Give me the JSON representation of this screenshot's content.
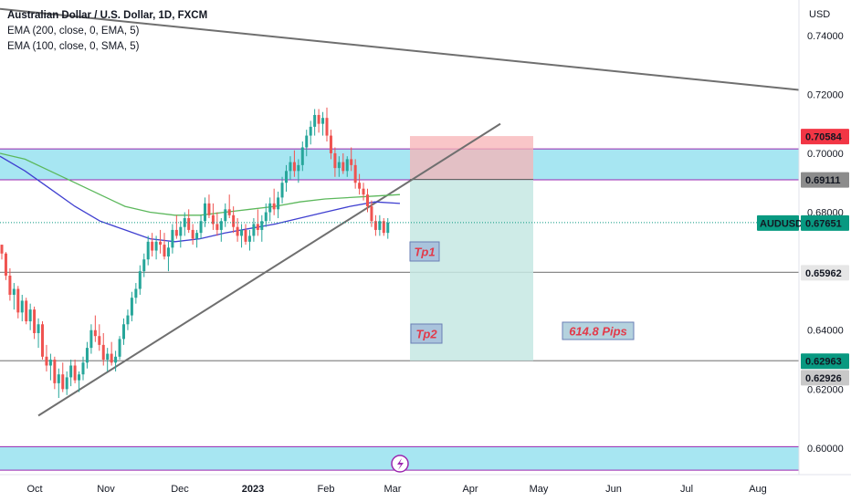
{
  "legend": {
    "title": "Australian Dollar / U.S. Dollar, 1D, FXCM",
    "ema200": "EMA (200, close, 0, EMA, 5)",
    "ema100": "EMA (100, close, 0, SMA, 5)"
  },
  "currency": "USD",
  "colors": {
    "up": "#26a69a",
    "down": "#ef5350",
    "zone": "#a7e6f2",
    "zone_border": "#9c27b0",
    "stop": "#f7b3b5",
    "target": "#c6e7e3",
    "ema200": "#5cb85c",
    "ema100": "#3f3fd0",
    "trendline": "#6f6f6f",
    "price_badge": "#089981",
    "sl_badge": "#f23645"
  },
  "chart_data": {
    "type": "candlestick",
    "symbol": "AUDUSD",
    "timeframe": "1D",
    "ylim": [
      0.591,
      0.752
    ],
    "y_ticks": [
      0.6,
      0.62,
      0.64,
      0.66,
      0.68,
      0.7,
      0.72,
      0.74
    ],
    "x_ticks": [
      "Oct",
      "Nov",
      "Dec",
      "2023",
      "Feb",
      "Mar",
      "Apr",
      "May",
      "Jun",
      "Jul",
      "Aug"
    ],
    "price_labels": {
      "last_symbol": "AUDUSD",
      "last": "0.67651",
      "stop": "0.70584",
      "entry": "0.69111",
      "tp1_level": "0.65962",
      "tp2_level": "0.62963",
      "tp2_alt": "0.62926"
    },
    "zones": [
      {
        "from": 0.691,
        "to": 0.7015
      },
      {
        "from": 0.5925,
        "to": 0.6005
      }
    ],
    "horizontal_lines": [
      0.65962,
      0.62963
    ],
    "trade": {
      "side": "short",
      "entry": 0.69111,
      "stop": 0.70584,
      "target": 0.62963,
      "labels": [
        "Tp1",
        "Tp2"
      ],
      "pips_label": "614.8 Pips"
    },
    "candles": [
      [
        0.669,
        0.669,
        0.664,
        0.666
      ],
      [
        0.666,
        0.6665,
        0.657,
        0.6585
      ],
      [
        0.6585,
        0.661,
        0.65,
        0.652
      ],
      [
        0.652,
        0.656,
        0.647,
        0.654
      ],
      [
        0.654,
        0.655,
        0.644,
        0.646
      ],
      [
        0.646,
        0.652,
        0.643,
        0.65
      ],
      [
        0.65,
        0.651,
        0.642,
        0.643
      ],
      [
        0.643,
        0.649,
        0.64,
        0.647
      ],
      [
        0.647,
        0.648,
        0.637,
        0.639
      ],
      [
        0.639,
        0.644,
        0.634,
        0.642
      ],
      [
        0.642,
        0.643,
        0.63,
        0.631
      ],
      [
        0.631,
        0.635,
        0.626,
        0.628
      ],
      [
        0.628,
        0.632,
        0.623,
        0.63
      ],
      [
        0.63,
        0.631,
        0.62,
        0.622
      ],
      [
        0.622,
        0.627,
        0.617,
        0.625
      ],
      [
        0.625,
        0.629,
        0.619,
        0.62
      ],
      [
        0.62,
        0.626,
        0.618,
        0.624
      ],
      [
        0.624,
        0.63,
        0.621,
        0.628
      ],
      [
        0.628,
        0.63,
        0.622,
        0.623
      ],
      [
        0.623,
        0.626,
        0.619,
        0.625
      ],
      [
        0.625,
        0.631,
        0.623,
        0.629
      ],
      [
        0.629,
        0.636,
        0.627,
        0.634
      ],
      [
        0.634,
        0.642,
        0.632,
        0.64
      ],
      [
        0.64,
        0.645,
        0.636,
        0.638
      ],
      [
        0.638,
        0.642,
        0.633,
        0.635
      ],
      [
        0.635,
        0.639,
        0.628,
        0.63
      ],
      [
        0.63,
        0.634,
        0.626,
        0.632
      ],
      [
        0.632,
        0.636,
        0.628,
        0.629
      ],
      [
        0.629,
        0.633,
        0.626,
        0.631
      ],
      [
        0.631,
        0.638,
        0.63,
        0.637
      ],
      [
        0.637,
        0.644,
        0.635,
        0.642
      ],
      [
        0.642,
        0.647,
        0.64,
        0.645
      ],
      [
        0.645,
        0.653,
        0.643,
        0.651
      ],
      [
        0.651,
        0.656,
        0.649,
        0.654
      ],
      [
        0.654,
        0.662,
        0.652,
        0.66
      ],
      [
        0.66,
        0.666,
        0.658,
        0.664
      ],
      [
        0.664,
        0.672,
        0.662,
        0.67
      ],
      [
        0.67,
        0.673,
        0.665,
        0.667
      ],
      [
        0.667,
        0.672,
        0.664,
        0.67
      ],
      [
        0.67,
        0.674,
        0.666,
        0.669
      ],
      [
        0.669,
        0.673,
        0.664,
        0.665
      ],
      [
        0.665,
        0.67,
        0.66,
        0.668
      ],
      [
        0.668,
        0.676,
        0.666,
        0.674
      ],
      [
        0.674,
        0.679,
        0.671,
        0.672
      ],
      [
        0.672,
        0.677,
        0.668,
        0.675
      ],
      [
        0.675,
        0.68,
        0.672,
        0.678
      ],
      [
        0.678,
        0.681,
        0.673,
        0.674
      ],
      [
        0.674,
        0.676,
        0.669,
        0.671
      ],
      [
        0.671,
        0.674,
        0.668,
        0.673
      ],
      [
        0.673,
        0.679,
        0.671,
        0.677
      ],
      [
        0.677,
        0.685,
        0.675,
        0.683
      ],
      [
        0.683,
        0.686,
        0.678,
        0.679
      ],
      [
        0.679,
        0.683,
        0.674,
        0.676
      ],
      [
        0.676,
        0.68,
        0.672,
        0.674
      ],
      [
        0.674,
        0.678,
        0.67,
        0.677
      ],
      [
        0.677,
        0.683,
        0.675,
        0.681
      ],
      [
        0.681,
        0.686,
        0.678,
        0.679
      ],
      [
        0.679,
        0.682,
        0.673,
        0.675
      ],
      [
        0.675,
        0.678,
        0.67,
        0.672
      ],
      [
        0.672,
        0.676,
        0.668,
        0.674
      ],
      [
        0.674,
        0.676,
        0.669,
        0.67
      ],
      [
        0.67,
        0.674,
        0.667,
        0.672
      ],
      [
        0.672,
        0.678,
        0.67,
        0.676
      ],
      [
        0.676,
        0.681,
        0.672,
        0.674
      ],
      [
        0.674,
        0.679,
        0.67,
        0.677
      ],
      [
        0.677,
        0.683,
        0.675,
        0.68
      ],
      [
        0.68,
        0.685,
        0.677,
        0.683
      ],
      [
        0.683,
        0.688,
        0.679,
        0.681
      ],
      [
        0.681,
        0.687,
        0.678,
        0.685
      ],
      [
        0.685,
        0.692,
        0.683,
        0.69
      ],
      [
        0.69,
        0.696,
        0.687,
        0.694
      ],
      [
        0.694,
        0.699,
        0.691,
        0.697
      ],
      [
        0.697,
        0.701,
        0.692,
        0.694
      ],
      [
        0.694,
        0.698,
        0.69,
        0.696
      ],
      [
        0.696,
        0.704,
        0.694,
        0.702
      ],
      [
        0.702,
        0.708,
        0.699,
        0.706
      ],
      [
        0.706,
        0.711,
        0.703,
        0.709
      ],
      [
        0.709,
        0.715,
        0.706,
        0.713
      ],
      [
        0.713,
        0.715,
        0.707,
        0.71
      ],
      [
        0.71,
        0.714,
        0.706,
        0.712
      ],
      [
        0.712,
        0.7155,
        0.704,
        0.706
      ],
      [
        0.706,
        0.708,
        0.698,
        0.7
      ],
      [
        0.7,
        0.702,
        0.692,
        0.695
      ],
      [
        0.695,
        0.699,
        0.692,
        0.697
      ],
      [
        0.697,
        0.7,
        0.693,
        0.694
      ],
      [
        0.694,
        0.699,
        0.692,
        0.698
      ],
      [
        0.698,
        0.702,
        0.694,
        0.696
      ],
      [
        0.696,
        0.698,
        0.688,
        0.69
      ],
      [
        0.69,
        0.693,
        0.686,
        0.688
      ],
      [
        0.688,
        0.69,
        0.684,
        0.686
      ],
      [
        0.686,
        0.688,
        0.68,
        0.682
      ],
      [
        0.682,
        0.684,
        0.675,
        0.677
      ],
      [
        0.677,
        0.679,
        0.672,
        0.674
      ],
      [
        0.674,
        0.679,
        0.672,
        0.677
      ],
      [
        0.677,
        0.678,
        0.672,
        0.673
      ],
      [
        0.673,
        0.678,
        0.671,
        0.6765
      ]
    ],
    "ema200_values": [
      0.7,
      0.698,
      0.694,
      0.69,
      0.686,
      0.682,
      0.68,
      0.679,
      0.679,
      0.68,
      0.681,
      0.682,
      0.6835,
      0.6845,
      0.685,
      0.6855,
      0.686
    ],
    "ema100_values": [
      0.699,
      0.694,
      0.688,
      0.682,
      0.677,
      0.674,
      0.671,
      0.67,
      0.671,
      0.673,
      0.6745,
      0.676,
      0.678,
      0.68,
      0.682,
      0.6835,
      0.683
    ]
  }
}
